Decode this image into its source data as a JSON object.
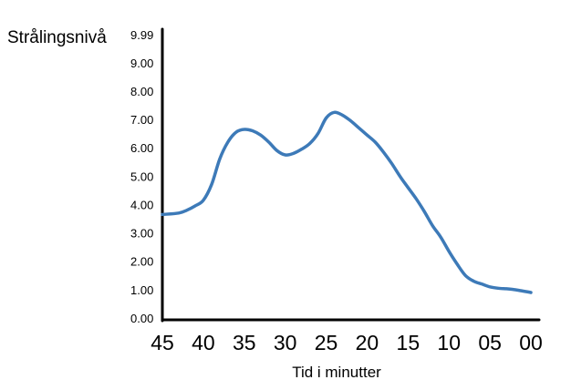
{
  "chart_data": {
    "type": "line",
    "title": "",
    "ylabel": "Strålingsnivå",
    "xlabel": "Tid i minutter",
    "y_tick_labels": [
      "0.00",
      "1.00",
      "2.00",
      "3.00",
      "4.00",
      "5.00",
      "6.00",
      "7.00",
      "8.00",
      "9.00",
      "9.99"
    ],
    "x_tick_labels": [
      "45",
      "40",
      "35",
      "30",
      "25",
      "20",
      "15",
      "10",
      "05",
      "00"
    ],
    "ylim": [
      0,
      9.99
    ],
    "xlim": [
      45,
      0
    ],
    "grid": false,
    "line_color": "#3d7ab8",
    "axis_color": "#000000",
    "series": [
      {
        "x": [
          45,
          43,
          42,
          41,
          40,
          39,
          38,
          37,
          36,
          35,
          34,
          33,
          32,
          31,
          30,
          29,
          28,
          27,
          26,
          25,
          24,
          23,
          22,
          21,
          20,
          19,
          18,
          17,
          16,
          15,
          14,
          13,
          12,
          11,
          10,
          9,
          8,
          7,
          6,
          5,
          4,
          3,
          2,
          1,
          0
        ],
        "y": [
          3.65,
          3.7,
          3.8,
          3.95,
          4.15,
          4.7,
          5.6,
          6.2,
          6.55,
          6.65,
          6.6,
          6.45,
          6.2,
          5.9,
          5.75,
          5.8,
          5.95,
          6.15,
          6.5,
          7.05,
          7.25,
          7.15,
          6.95,
          6.7,
          6.45,
          6.2,
          5.85,
          5.45,
          5.0,
          4.6,
          4.2,
          3.75,
          3.25,
          2.85,
          2.35,
          1.9,
          1.5,
          1.3,
          1.2,
          1.1,
          1.05,
          1.03,
          1.0,
          0.95,
          0.9
        ]
      }
    ]
  }
}
